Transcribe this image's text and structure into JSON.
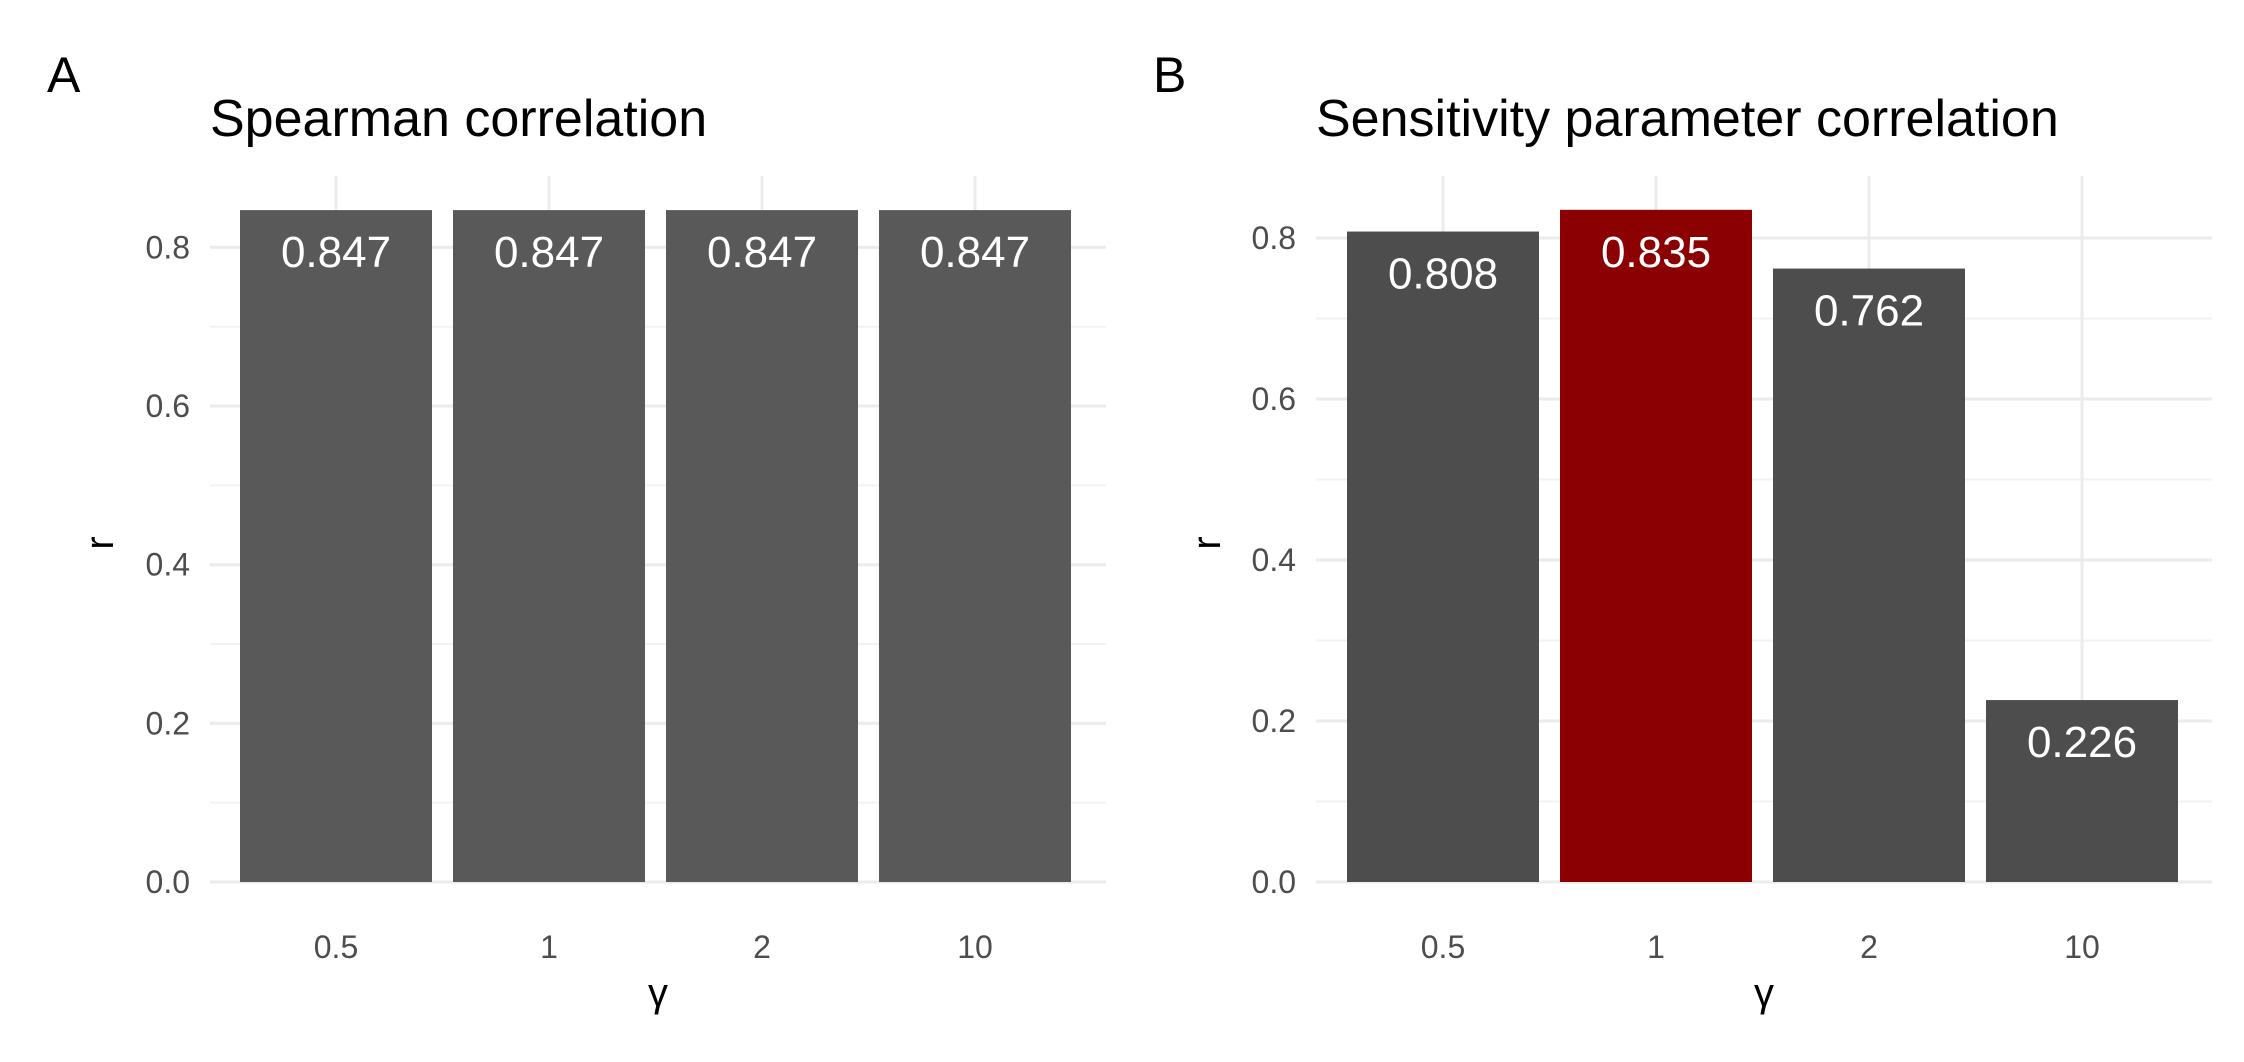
{
  "chart_data": [
    {
      "panel": "A",
      "type": "bar",
      "title": "Spearman correlation",
      "xlabel": "γ",
      "ylabel": "r",
      "categories": [
        "0.5",
        "1",
        "2",
        "10"
      ],
      "values": [
        0.847,
        0.847,
        0.847,
        0.847
      ],
      "labels": [
        "0.847",
        "0.847",
        "0.847",
        "0.847"
      ],
      "ylim": [
        0,
        0.89
      ],
      "yticks": [
        0.0,
        0.2,
        0.4,
        0.6,
        0.8
      ],
      "ytick_labels": [
        "0.0",
        "0.2",
        "0.4",
        "0.6",
        "0.8"
      ],
      "bar_colors": [
        "#595959",
        "#595959",
        "#595959",
        "#595959"
      ],
      "grid": true,
      "legend": "none"
    },
    {
      "panel": "B",
      "type": "bar",
      "title": "Sensitivity parameter correlation",
      "xlabel": "γ",
      "ylabel": "r",
      "categories": [
        "0.5",
        "1",
        "2",
        "10"
      ],
      "values": [
        0.808,
        0.835,
        0.762,
        0.226
      ],
      "labels": [
        "0.808",
        "0.835",
        "0.762",
        "0.226"
      ],
      "ylim": [
        0,
        0.877
      ],
      "yticks": [
        0.0,
        0.2,
        0.4,
        0.6,
        0.8
      ],
      "ytick_labels": [
        "0.0",
        "0.2",
        "0.4",
        "0.6",
        "0.8"
      ],
      "bar_colors": [
        "#4d4d4d",
        "#8b0000",
        "#4d4d4d",
        "#4d4d4d"
      ],
      "grid": true,
      "legend": "none"
    }
  ]
}
